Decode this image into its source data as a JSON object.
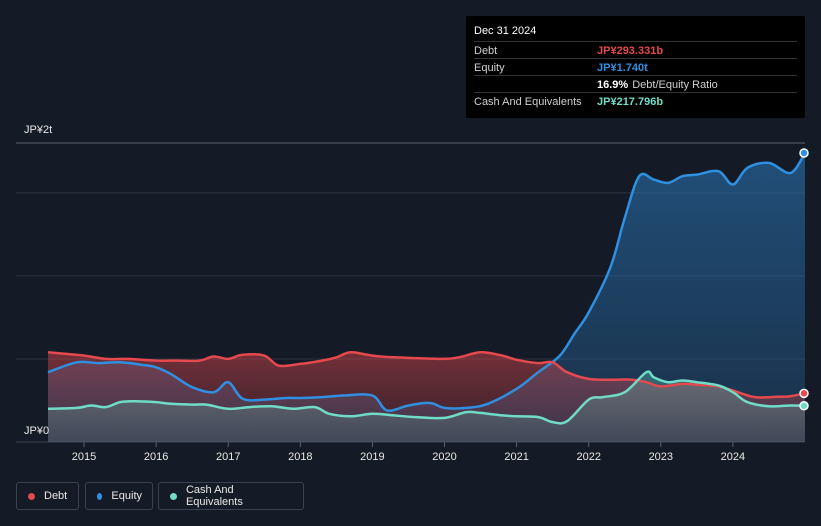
{
  "tooltip": {
    "date": "Dec 31 2024",
    "debt_label": "Debt",
    "debt_value": "JP¥293.331b",
    "equity_label": "Equity",
    "equity_value": "JP¥1.740t",
    "ratio_value": "16.9%",
    "ratio_label": "Debt/Equity Ratio",
    "cash_label": "Cash And Equivalents",
    "cash_value": "JP¥217.796b"
  },
  "legend": {
    "debt": "Debt",
    "equity": "Equity",
    "cash": "Cash And Equivalents"
  },
  "colors": {
    "debt": "#e5484d",
    "equity": "#2f8fe0",
    "cash": "#6fdcc8",
    "background": "#151b26"
  },
  "chart_data": {
    "type": "area",
    "y_unit": "JP¥ billions",
    "ytick_labels": [
      "JP¥0",
      "JP¥2t"
    ],
    "ylim": [
      0,
      1800
    ],
    "xlim": [
      2014.5,
      2025.0
    ],
    "xticks": [
      "2015",
      "2016",
      "2017",
      "2018",
      "2019",
      "2020",
      "2021",
      "2022",
      "2023",
      "2024"
    ],
    "grid": true,
    "legend_position": "bottom-left",
    "series": [
      {
        "name": "Debt",
        "x": [
          2014.5,
          2015.0,
          2015.3,
          2015.6,
          2016.0,
          2016.3,
          2016.6,
          2016.8,
          2017.0,
          2017.2,
          2017.5,
          2017.7,
          2018.0,
          2018.3,
          2018.5,
          2018.7,
          2019.0,
          2019.3,
          2019.6,
          2020.0,
          2020.2,
          2020.5,
          2020.8,
          2021.0,
          2021.3,
          2021.5,
          2021.7,
          2022.0,
          2022.3,
          2022.6,
          2022.8,
          2023.0,
          2023.3,
          2023.5,
          2023.8,
          2024.0,
          2024.3,
          2024.6,
          2024.8,
          2025.0
        ],
        "values": [
          540,
          520,
          500,
          500,
          490,
          490,
          490,
          515,
          500,
          525,
          520,
          460,
          470,
          490,
          510,
          540,
          520,
          510,
          505,
          500,
          510,
          540,
          520,
          495,
          475,
          480,
          420,
          380,
          375,
          375,
          360,
          335,
          350,
          345,
          335,
          310,
          270,
          272,
          276,
          293
        ]
      },
      {
        "name": "Equity",
        "x": [
          2014.5,
          2014.9,
          2015.2,
          2015.5,
          2015.8,
          2016.0,
          2016.2,
          2016.5,
          2016.8,
          2017.0,
          2017.2,
          2017.5,
          2017.8,
          2018.0,
          2018.3,
          2018.6,
          2019.0,
          2019.2,
          2019.5,
          2019.8,
          2020.0,
          2020.3,
          2020.6,
          2021.0,
          2021.3,
          2021.6,
          2021.8,
          2022.0,
          2022.3,
          2022.5,
          2022.7,
          2022.9,
          2023.1,
          2023.3,
          2023.5,
          2023.8,
          2024.0,
          2024.2,
          2024.5,
          2024.8,
          2025.0
        ],
        "values": [
          420,
          480,
          475,
          480,
          465,
          450,
          410,
          330,
          300,
          360,
          260,
          255,
          265,
          265,
          270,
          280,
          280,
          190,
          220,
          235,
          205,
          205,
          230,
          320,
          420,
          520,
          650,
          780,
          1050,
          1350,
          1600,
          1580,
          1560,
          1600,
          1610,
          1630,
          1550,
          1650,
          1680,
          1620,
          1740
        ]
      },
      {
        "name": "Cash And Equivalents",
        "x": [
          2014.5,
          2014.9,
          2015.1,
          2015.3,
          2015.5,
          2015.7,
          2016.0,
          2016.2,
          2016.5,
          2016.7,
          2017.0,
          2017.3,
          2017.6,
          2017.9,
          2018.2,
          2018.4,
          2018.7,
          2019.0,
          2019.3,
          2019.6,
          2020.0,
          2020.3,
          2020.5,
          2020.8,
          2021.0,
          2021.3,
          2021.5,
          2021.7,
          2022.0,
          2022.2,
          2022.5,
          2022.8,
          2022.9,
          2023.1,
          2023.3,
          2023.5,
          2023.8,
          2024.0,
          2024.2,
          2024.5,
          2024.8,
          2025.0
        ],
        "values": [
          200,
          205,
          220,
          210,
          240,
          245,
          240,
          230,
          225,
          225,
          200,
          210,
          215,
          200,
          210,
          170,
          155,
          170,
          160,
          150,
          145,
          180,
          175,
          160,
          155,
          150,
          120,
          125,
          255,
          270,
          300,
          420,
          390,
          360,
          370,
          360,
          340,
          300,
          240,
          215,
          220,
          218
        ]
      }
    ]
  }
}
